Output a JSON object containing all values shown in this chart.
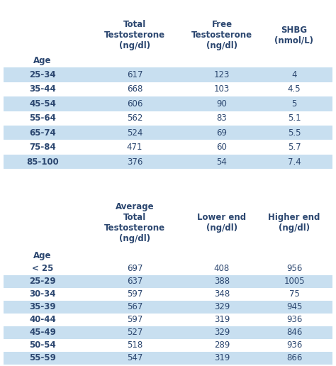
{
  "table1": {
    "age_label": "Age",
    "col1_label": "Total\nTestosterone\n(ng/dl)",
    "col2_label": "Free\nTestosterone\n(ng/dl)",
    "col3_label": "SHBG\n(nmol/L)",
    "rows": [
      [
        "25-34",
        "617",
        "123",
        "4"
      ],
      [
        "35-44",
        "668",
        "103",
        "4.5"
      ],
      [
        "45-54",
        "606",
        "90",
        "5"
      ],
      [
        "55-64",
        "562",
        "83",
        "5.1"
      ],
      [
        "65-74",
        "524",
        "69",
        "5.5"
      ],
      [
        "75-84",
        "471",
        "60",
        "5.7"
      ],
      [
        "85-100",
        "376",
        "54",
        "7.4"
      ]
    ],
    "shaded_rows": [
      0,
      2,
      4,
      6
    ]
  },
  "table2": {
    "age_label": "Age",
    "col1_label": "Average\nTotal\nTestosterone\n(ng/dl)",
    "col2_label": "Lower end\n(ng/dl)",
    "col3_label": "Higher end\n(ng/dl)",
    "rows": [
      [
        "< 25",
        "697",
        "408",
        "956"
      ],
      [
        "25-29",
        "637",
        "388",
        "1005"
      ],
      [
        "30-34",
        "597",
        "348",
        "75"
      ],
      [
        "35-39",
        "567",
        "329",
        "945"
      ],
      [
        "40-44",
        "597",
        "319",
        "936"
      ],
      [
        "45-49",
        "527",
        "329",
        "846"
      ],
      [
        "50-54",
        "518",
        "289",
        "936"
      ],
      [
        "55-59",
        "547",
        "319",
        "866"
      ]
    ],
    "shaded_rows": [
      1,
      3,
      5,
      7
    ]
  },
  "bg_color": "#ffffff",
  "shaded_color": "#c8dff0",
  "text_color": "#2c4770",
  "header_fontsize": 8.5,
  "data_fontsize": 8.5,
  "figw": 4.74,
  "figh": 5.16,
  "dpi": 100
}
